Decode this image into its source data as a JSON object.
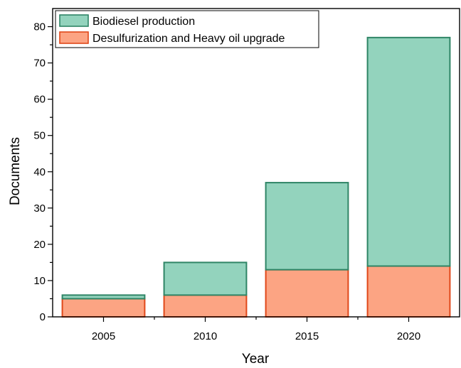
{
  "chart_data": {
    "type": "bar",
    "stacked": true,
    "categories": [
      "2005",
      "2010",
      "2015",
      "2020"
    ],
    "series": [
      {
        "name": "Desulfurization and Heavy oil upgrade",
        "values": [
          5,
          6,
          13,
          14
        ],
        "fill": "#fca483",
        "stroke": "#e0481a"
      },
      {
        "name": "Biodiesel production",
        "values": [
          1,
          9,
          24,
          63
        ],
        "fill": "#93d3bd",
        "stroke": "#2f8566"
      }
    ],
    "legend_order": [
      "Biodiesel production",
      "Desulfurization and Heavy oil upgrade"
    ],
    "xlabel": "Year",
    "ylabel": "Documents",
    "ylim": [
      0,
      85
    ],
    "yticks": [
      0,
      10,
      20,
      30,
      40,
      50,
      60,
      70,
      80
    ],
    "legend_position": "top-left",
    "grid": false
  }
}
